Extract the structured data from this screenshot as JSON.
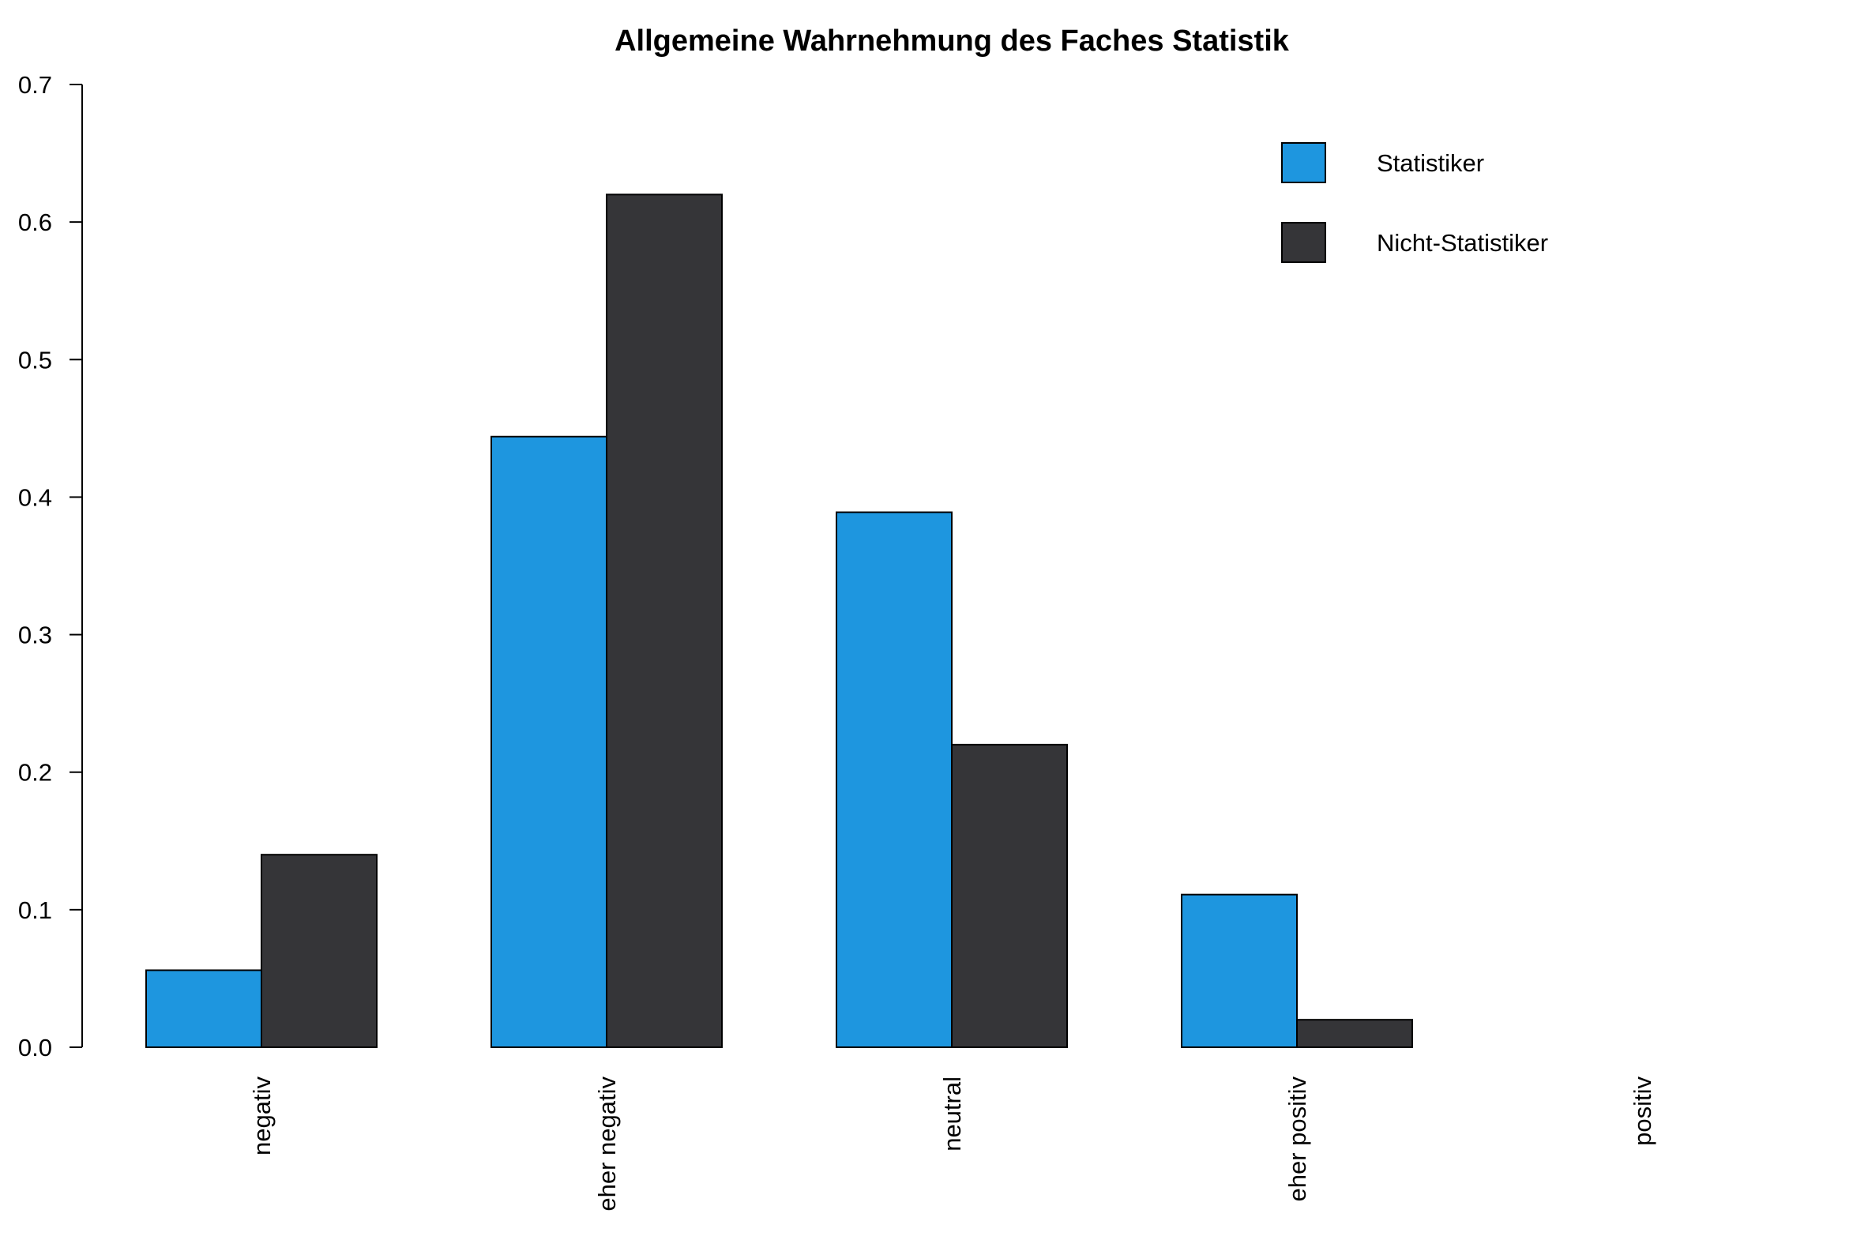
{
  "chart_data": {
    "type": "bar",
    "title": "Allgemeine Wahrnehmung des Faches Statistik",
    "xlabel": "",
    "ylabel": "",
    "categories": [
      "negativ",
      "eher negativ",
      "neutral",
      "eher positiv",
      "positiv"
    ],
    "series": [
      {
        "name": "Statistiker",
        "color": "#1e96df",
        "values": [
          0.056,
          0.444,
          0.389,
          0.111,
          0.0
        ]
      },
      {
        "name": "Nicht-Statistiker",
        "color": "#353538",
        "values": [
          0.14,
          0.62,
          0.22,
          0.02,
          0.0
        ]
      }
    ],
    "ylim": [
      0,
      0.7
    ],
    "yticks": [
      "0.0",
      "0.1",
      "0.2",
      "0.3",
      "0.4",
      "0.5",
      "0.6",
      "0.7"
    ],
    "legend_position": "top-right",
    "grid": false
  }
}
